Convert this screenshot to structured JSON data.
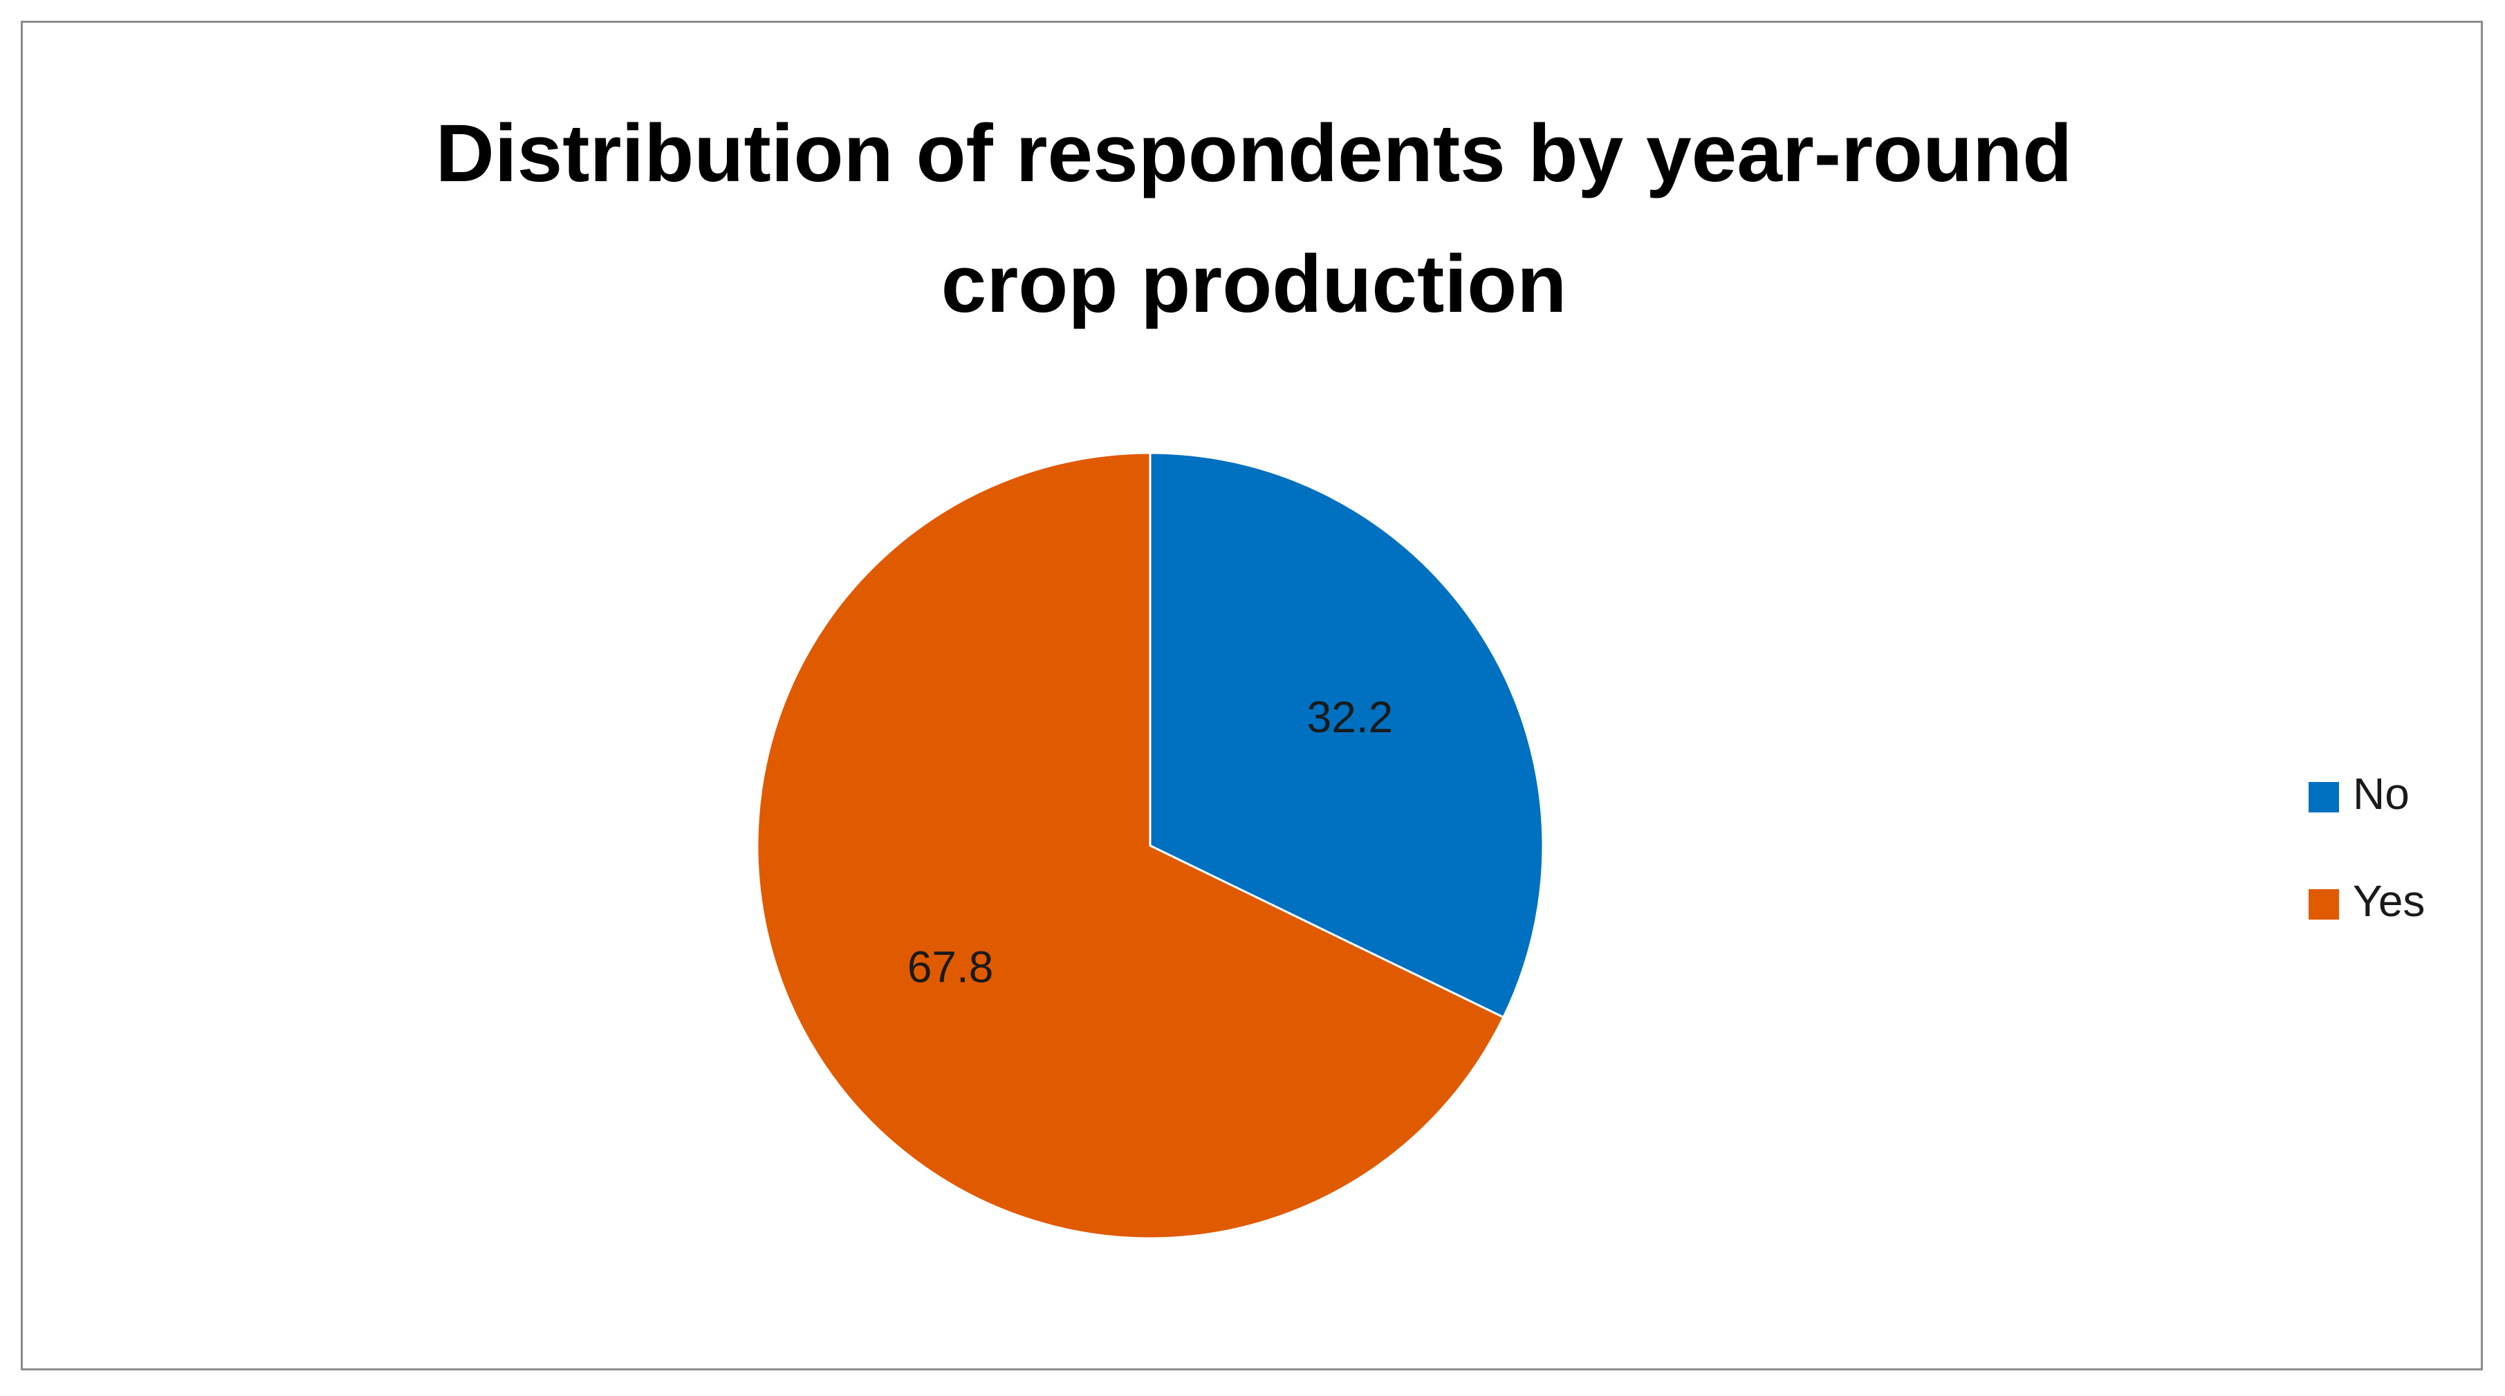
{
  "chart_data": {
    "type": "pie",
    "title_lines": [
      "Distribution of respondents by year-round",
      "crop production"
    ],
    "categories": [
      "No",
      "Yes"
    ],
    "values": [
      32.2,
      67.8
    ],
    "data_labels": [
      "32.2",
      "67.8"
    ],
    "colors": [
      "#0070C0",
      "#E05A00"
    ],
    "start_angle_deg": 0,
    "direction": "clockwise",
    "legend_position": "right",
    "legend": [
      {
        "label": "No",
        "color": "#0070C0"
      },
      {
        "label": "Yes",
        "color": "#E05A00"
      }
    ]
  }
}
